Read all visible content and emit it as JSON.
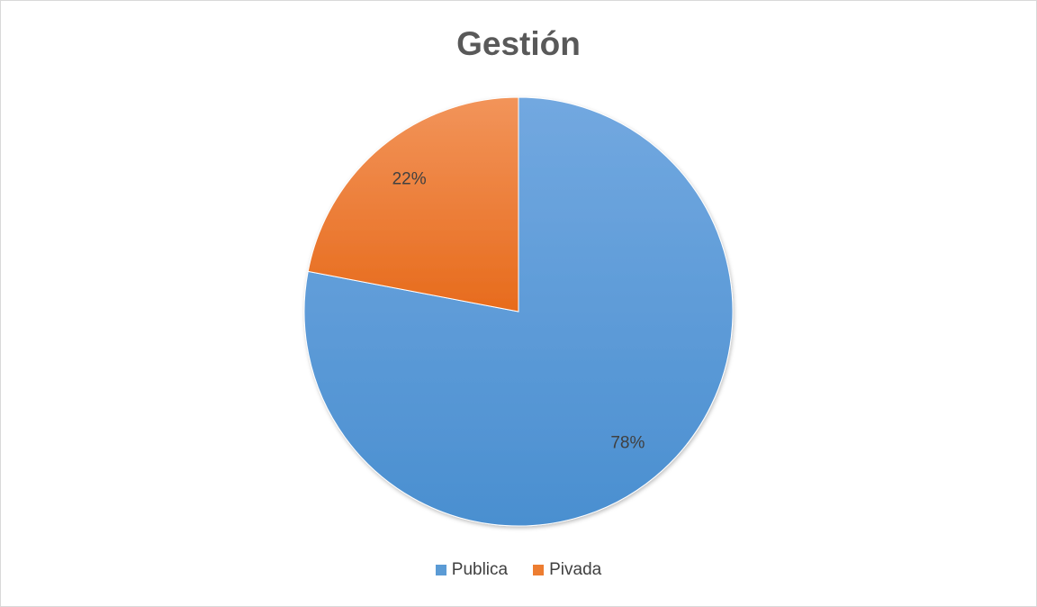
{
  "chart_data": {
    "type": "pie",
    "title": "Gestión",
    "categories": [
      "Publica",
      "Pivada"
    ],
    "values": [
      78,
      22
    ],
    "value_labels": [
      "78%",
      "22%"
    ],
    "colors": [
      "#5b9bd5",
      "#ed7d31"
    ],
    "legend_position": "bottom",
    "start_angle": "12 o'clock",
    "direction": "clockwise"
  }
}
